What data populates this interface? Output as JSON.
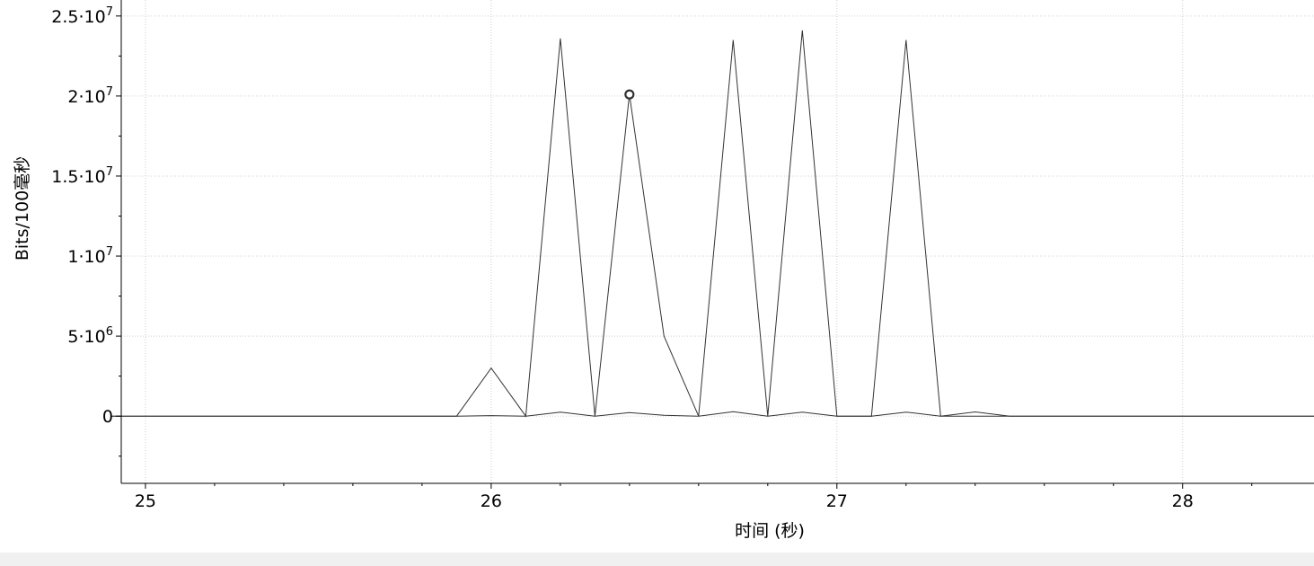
{
  "chart_data": {
    "type": "line",
    "xlabel": "时间 (秒)",
    "ylabel": "Bits/100毫秒",
    "xlim": [
      24.93,
      28.38
    ],
    "ylim": [
      -4200000,
      26000000
    ],
    "grid": true,
    "x_ticks": [
      {
        "value": 25,
        "label": "25"
      },
      {
        "value": 26,
        "label": "26"
      },
      {
        "value": 27,
        "label": "27"
      },
      {
        "value": 28,
        "label": "28"
      }
    ],
    "y_ticks": [
      {
        "value": 0,
        "mantissa": "0",
        "exponent": ""
      },
      {
        "value": 5000000,
        "mantissa": "5·10",
        "exponent": "6"
      },
      {
        "value": 10000000,
        "mantissa": "1·10",
        "exponent": "7"
      },
      {
        "value": 15000000,
        "mantissa": "1.5·10",
        "exponent": "7"
      },
      {
        "value": 20000000,
        "mantissa": "2·10",
        "exponent": "7"
      },
      {
        "value": 25000000,
        "mantissa": "2.5·10",
        "exponent": "7"
      }
    ],
    "series": [
      {
        "color": "#333333",
        "x": [
          24.9,
          25.9,
          26.0,
          26.1,
          26.2,
          26.3,
          26.4,
          26.5,
          26.6,
          26.7,
          26.8,
          26.9,
          27.0,
          27.1,
          27.2,
          27.3,
          27.4,
          27.5,
          28.4
        ],
        "y": [
          0,
          0,
          3000000,
          0,
          23600000,
          0,
          20100000,
          5000000,
          0,
          23500000,
          0,
          24100000,
          0,
          0,
          23500000,
          0,
          0,
          0,
          0
        ]
      },
      {
        "color": "#333333",
        "x": [
          24.9,
          25.9,
          26.0,
          26.1,
          26.2,
          26.3,
          26.4,
          26.5,
          26.6,
          26.7,
          26.8,
          26.9,
          27.0,
          27.1,
          27.2,
          27.3,
          27.4,
          27.5,
          28.4
        ],
        "y": [
          0,
          0,
          30000,
          0,
          250000,
          0,
          220000,
          50000,
          0,
          280000,
          0,
          250000,
          0,
          0,
          250000,
          0,
          260000,
          0,
          0
        ]
      }
    ],
    "marker": {
      "x": 26.4,
      "y": 20100000
    }
  }
}
